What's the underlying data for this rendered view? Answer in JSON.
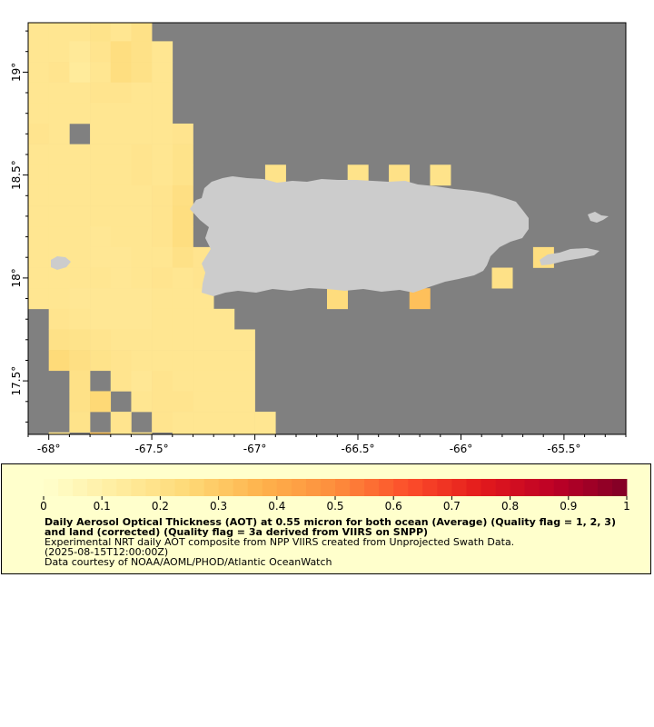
{
  "map": {
    "lon_range": [
      -68.1,
      -65.2
    ],
    "lat_range": [
      17.24,
      19.24
    ],
    "background_color": "#808080",
    "land_color": "#cccccc",
    "x_ticks": [
      {
        "value": -68.0,
        "label": "-68°"
      },
      {
        "value": -67.5,
        "label": "-67.5°"
      },
      {
        "value": -67.0,
        "label": "-67°"
      },
      {
        "value": -66.5,
        "label": "-66.5°"
      },
      {
        "value": -66.0,
        "label": "-66°"
      },
      {
        "value": -65.5,
        "label": "-65.5°"
      }
    ],
    "y_ticks": [
      {
        "value": 19.0,
        "label": "19°"
      },
      {
        "value": 18.5,
        "label": "18.5°"
      },
      {
        "value": 18.0,
        "label": "18°"
      },
      {
        "value": 17.5,
        "label": "17.5°"
      }
    ],
    "grid_resolution_deg": 0.1
  },
  "chart_data": {
    "type": "heatmap",
    "variable": "Aerosol Optical Thickness (AOT) at 0.55 micron",
    "value_range": [
      0,
      1
    ],
    "colorbar_ticks": [
      "0",
      "0.1",
      "0.2",
      "0.3",
      "0.4",
      "0.5",
      "0.6",
      "0.7",
      "0.8",
      "0.9",
      "1"
    ],
    "colorbar_colors": [
      "#ffffcc",
      "#ffeda0",
      "#fed976",
      "#feb24c",
      "#fd8d3c",
      "#fc4e2a",
      "#e31a1c",
      "#bd0026",
      "#800026"
    ],
    "west_ocean_values": [
      [
        0.17,
        0.17,
        0.17,
        0.19,
        0.17,
        0.2
      ],
      [
        0.17,
        0.17,
        0.15,
        0.18,
        0.22,
        0.2,
        0.17
      ],
      [
        0.17,
        0.18,
        0.14,
        0.17,
        0.22,
        0.2,
        0.17
      ],
      [
        0.17,
        0.17,
        0.17,
        0.18,
        0.18,
        0.17,
        0.17
      ],
      [
        0.17,
        0.17,
        0.17,
        0.17,
        0.17,
        0.17,
        0.17
      ],
      [
        0.18,
        0.17,
        null,
        0.17,
        0.17,
        0.17,
        0.17,
        0.18
      ],
      [
        0.17,
        0.17,
        0.17,
        0.17,
        0.17,
        0.18,
        0.17,
        0.19
      ],
      [
        0.17,
        0.17,
        0.17,
        0.17,
        0.17,
        0.18,
        0.17,
        0.19
      ],
      [
        0.17,
        0.17,
        0.17,
        0.17,
        0.17,
        0.17,
        0.18,
        0.21
      ],
      [
        0.17,
        0.17,
        0.17,
        0.17,
        0.17,
        0.17,
        0.18,
        0.22
      ],
      [
        0.17,
        0.17,
        0.17,
        0.16,
        0.17,
        0.17,
        0.18,
        0.22
      ],
      [
        0.17,
        0.17,
        0.17,
        0.16,
        0.16,
        0.17,
        0.17,
        0.2,
        0.18
      ],
      [
        0.17,
        0.17,
        0.17,
        0.17,
        0.16,
        0.17,
        0.18,
        0.17,
        0.18
      ],
      [
        0.17,
        0.17,
        0.16,
        0.16,
        0.16,
        0.16,
        0.17,
        0.17,
        0.17
      ],
      [
        null,
        0.18,
        0.17,
        0.16,
        0.16,
        0.16,
        0.17,
        0.17,
        0.17,
        0.17
      ],
      [
        null,
        0.2,
        0.19,
        0.18,
        0.17,
        0.17,
        0.17,
        0.17,
        0.17,
        0.17,
        0.17
      ],
      [
        null,
        0.24,
        0.21,
        0.19,
        0.18,
        0.17,
        0.17,
        0.17,
        0.17,
        0.17,
        0.17
      ],
      [
        null,
        null,
        0.2,
        null,
        0.18,
        0.16,
        0.18,
        0.17,
        0.17,
        0.17,
        0.17
      ],
      [
        null,
        null,
        0.2,
        0.25,
        null,
        0.17,
        0.18,
        0.18,
        0.17,
        0.17,
        0.17
      ],
      [
        null,
        null,
        0.19,
        null,
        0.18,
        null,
        0.18,
        0.17,
        0.17,
        0.17,
        0.17,
        0.17
      ],
      [
        null,
        0.17,
        null,
        0.3,
        0.17,
        0.17,
        null,
        0.17,
        0.17,
        0.17,
        0.17,
        0.17
      ],
      [
        null,
        null,
        null,
        0.31,
        0.18,
        0.17,
        0.17,
        0.17,
        0.17,
        0.17,
        0.17,
        0.17
      ]
    ],
    "coastal_cells": [
      {
        "lon": -66.9,
        "lat": 18.5,
        "value": 0.19
      },
      {
        "lon": -66.5,
        "lat": 18.5,
        "value": 0.19
      },
      {
        "lon": -66.3,
        "lat": 18.5,
        "value": 0.2
      },
      {
        "lon": -66.1,
        "lat": 18.5,
        "value": 0.19
      },
      {
        "lon": -66.6,
        "lat": 17.9,
        "value": 0.23
      },
      {
        "lon": -66.2,
        "lat": 17.9,
        "value": 0.33
      },
      {
        "lon": -65.6,
        "lat": 18.1,
        "value": 0.22
      },
      {
        "lon": -65.8,
        "lat": 18.0,
        "value": 0.2
      }
    ]
  },
  "legend": {
    "title": "Daily Aerosol Optical Thickness (AOT) at 0.55 micron for both ocean (Average) (Quality flag = 1, 2, 3) and land (corrected) (Quality flag = 3a derived from VIIRS on SNPP)",
    "line1": "Experimental NRT daily AOT composite from NPP VIIRS created from Unprojected Swath Data.",
    "line2": "(2025-08-15T12:00:00Z)",
    "line3": "Data courtesy of NOAA/AOML/PHOD/Atlantic OceanWatch"
  }
}
